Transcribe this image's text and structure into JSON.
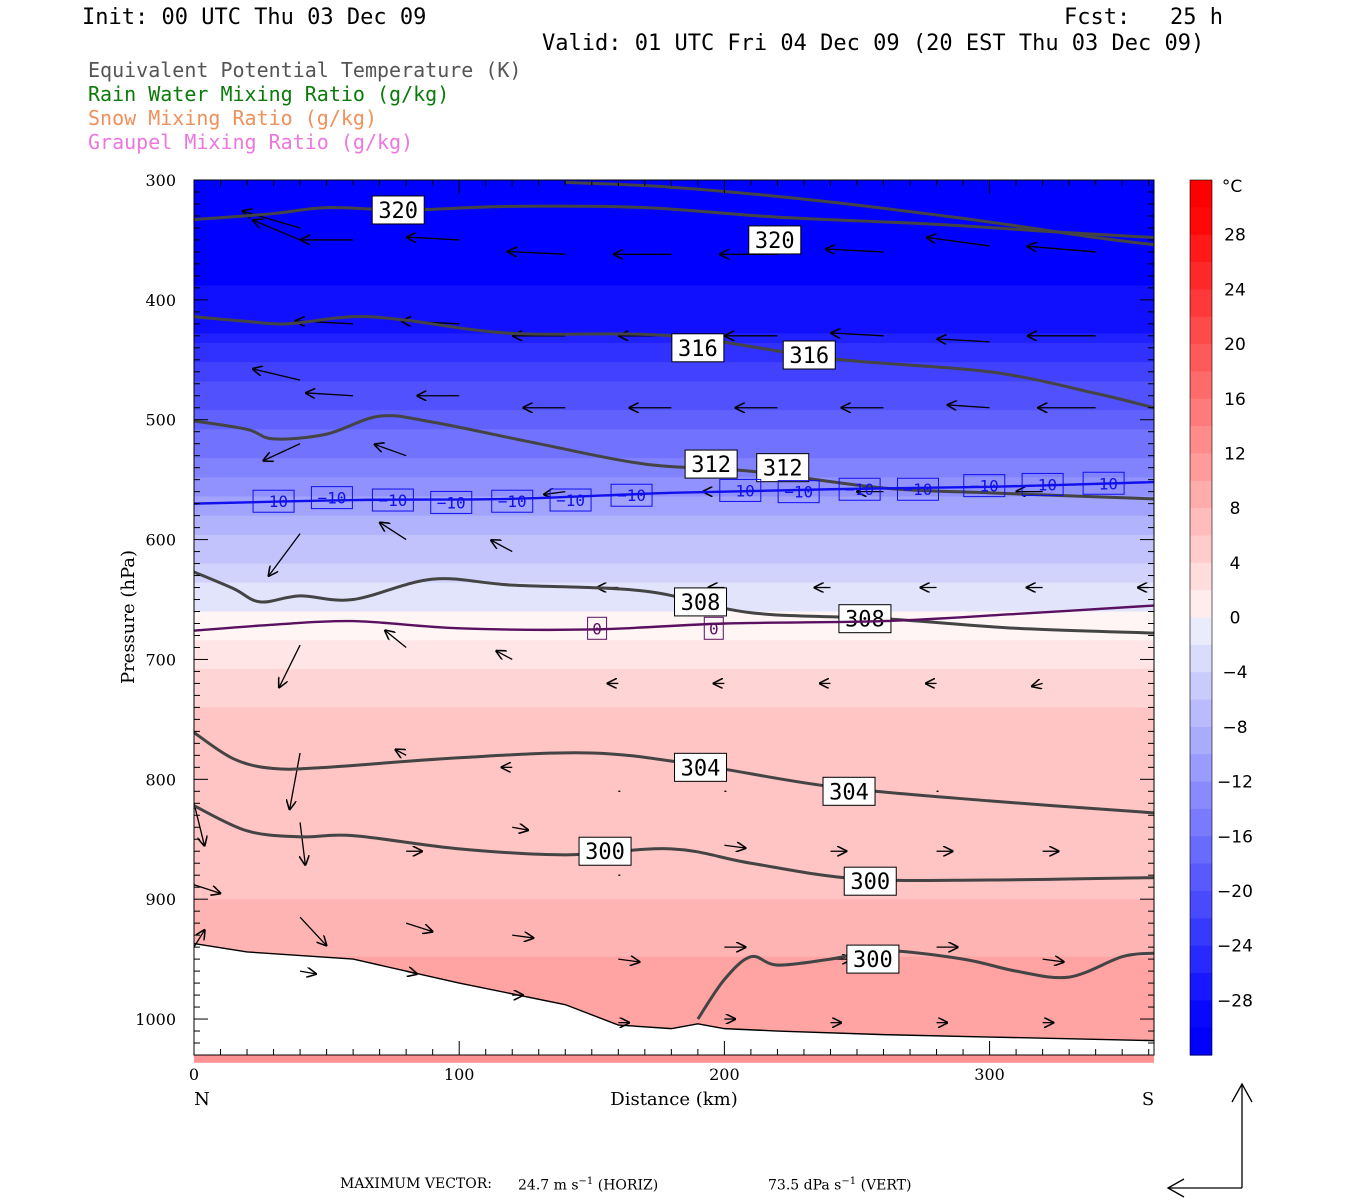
{
  "header": {
    "init": "Init: 00 UTC Thu 03 Dec 09",
    "fcst": "Fcst:   25 h",
    "valid": "Valid: 01 UTC Fri 04 Dec 09 (20 EST Thu 03 Dec 09)"
  },
  "legend": [
    {
      "label": "Equivalent Potential Temperature (K)",
      "color": "#555555"
    },
    {
      "label": "Rain Water Mixing Ratio (g/kg)",
      "color": "#0a7a0a"
    },
    {
      "label": "Snow Mixing Ratio (g/kg)",
      "color": "#f0905a"
    },
    {
      "label": "Graupel Mixing Ratio (g/kg)",
      "color": "#ee77dd"
    }
  ],
  "chart_data": {
    "type": "cross-section",
    "xlabel": "Distance (km)",
    "ylabel": "Pressure (hPa)",
    "x_range": [
      0,
      362
    ],
    "y_range": [
      300,
      1030
    ],
    "y_log_scale": false,
    "x_ticks": [
      0,
      100,
      200,
      300
    ],
    "y_ticks": [
      300,
      400,
      500,
      600,
      700,
      800,
      900,
      1000
    ],
    "end_labels": {
      "left": "N",
      "right": "S"
    },
    "colorbar": {
      "unit": "°C",
      "labels": [
        28,
        24,
        20,
        16,
        12,
        8,
        4,
        0,
        -4,
        -8,
        -12,
        -16,
        -20,
        -24,
        -28
      ],
      "label_texts": [
        "28",
        "24",
        "20",
        "16",
        "12",
        "8",
        "4",
        "0",
        "−4",
        "−8",
        "−12",
        "−16",
        "−20",
        "−24",
        "−28"
      ],
      "min": -32,
      "max": 32,
      "step": 2
    },
    "temperature_bands": [
      {
        "p": 300,
        "t": -32
      },
      {
        "p": 420,
        "t": -28
      },
      {
        "p": 460,
        "t": -22
      },
      {
        "p": 520,
        "t": -16
      },
      {
        "p": 570,
        "t": -10
      },
      {
        "p": 620,
        "t": -5
      },
      {
        "p": 670,
        "t": 0
      },
      {
        "p": 720,
        "t": 4
      },
      {
        "p": 790,
        "t": 7
      },
      {
        "p": 880,
        "t": 6
      },
      {
        "p": 950,
        "t": 9
      },
      {
        "p": 1030,
        "t": 11
      }
    ],
    "theta_e_contours": [
      {
        "label": "320",
        "points": [
          [
            0,
            333
          ],
          [
            30,
            328
          ],
          [
            50,
            323
          ],
          [
            80,
            325
          ],
          [
            120,
            322
          ],
          [
            170,
            323
          ],
          [
            220,
            331
          ],
          [
            280,
            337
          ],
          [
            330,
            344
          ],
          [
            362,
            348
          ]
        ],
        "label_pos": [
          [
            77,
            325
          ]
        ]
      },
      {
        "label": "320",
        "points": [
          [
            140,
            302
          ],
          [
            180,
            306
          ],
          [
            230,
            316
          ],
          [
            290,
            332
          ],
          [
            340,
            348
          ],
          [
            362,
            354
          ]
        ],
        "label_pos": [
          [
            219,
            350
          ]
        ]
      },
      {
        "label": "316",
        "points": [
          [
            0,
            414
          ],
          [
            20,
            418
          ],
          [
            35,
            420
          ],
          [
            60,
            414
          ],
          [
            80,
            417
          ],
          [
            120,
            428
          ],
          [
            180,
            430
          ],
          [
            240,
            449
          ],
          [
            300,
            460
          ],
          [
            340,
            478
          ],
          [
            362,
            490
          ]
        ],
        "label_pos": [
          [
            190,
            440
          ],
          [
            232,
            446
          ]
        ]
      },
      {
        "label": "312",
        "points": [
          [
            0,
            501
          ],
          [
            20,
            508
          ],
          [
            30,
            516
          ],
          [
            50,
            512
          ],
          [
            70,
            497
          ],
          [
            90,
            502
          ],
          [
            130,
            520
          ],
          [
            170,
            537
          ],
          [
            210,
            543
          ],
          [
            260,
            557
          ],
          [
            300,
            561
          ],
          [
            362,
            566
          ]
        ],
        "label_pos": [
          [
            195,
            537
          ],
          [
            222,
            540
          ]
        ]
      },
      {
        "label": "308",
        "points": [
          [
            0,
            627
          ],
          [
            15,
            641
          ],
          [
            25,
            652
          ],
          [
            40,
            647
          ],
          [
            60,
            650
          ],
          [
            90,
            633
          ],
          [
            120,
            638
          ],
          [
            170,
            643
          ],
          [
            210,
            661
          ],
          [
            260,
            666
          ],
          [
            310,
            674
          ],
          [
            362,
            678
          ]
        ],
        "label_pos": [
          [
            191,
            652
          ],
          [
            253,
            666
          ]
        ]
      },
      {
        "label": "304",
        "points": [
          [
            0,
            761
          ],
          [
            15,
            783
          ],
          [
            30,
            791
          ],
          [
            50,
            790
          ],
          [
            100,
            782
          ],
          [
            150,
            778
          ],
          [
            190,
            788
          ],
          [
            240,
            806
          ],
          [
            300,
            818
          ],
          [
            362,
            828
          ]
        ],
        "label_pos": [
          [
            191,
            790
          ],
          [
            247,
            810
          ]
        ]
      },
      {
        "label": "300",
        "points": [
          [
            0,
            822
          ],
          [
            20,
            843
          ],
          [
            40,
            848
          ],
          [
            60,
            847
          ],
          [
            100,
            858
          ],
          [
            140,
            863
          ],
          [
            180,
            858
          ],
          [
            210,
            870
          ],
          [
            250,
            883
          ],
          [
            300,
            884
          ],
          [
            362,
            882
          ]
        ],
        "label_pos": [
          [
            155,
            860
          ],
          [
            255,
            885
          ]
        ]
      },
      {
        "label": "300",
        "points": [
          [
            190,
            1000
          ],
          [
            200,
            967
          ],
          [
            210,
            948
          ],
          [
            220,
            955
          ],
          [
            240,
            950
          ],
          [
            260,
            943
          ],
          [
            290,
            950
          ],
          [
            310,
            960
          ],
          [
            330,
            965
          ],
          [
            350,
            948
          ],
          [
            362,
            945
          ]
        ],
        "label_pos": [
          [
            256,
            950
          ]
        ]
      }
    ],
    "isotherms": [
      {
        "label": "−10",
        "color": "#1010ee",
        "points": [
          [
            0,
            570
          ],
          [
            60,
            567
          ],
          [
            120,
            566
          ],
          [
            180,
            561
          ],
          [
            240,
            558
          ],
          [
            300,
            556
          ],
          [
            362,
            552
          ]
        ],
        "label_pos": [
          [
            30,
            568
          ],
          [
            52,
            565
          ],
          [
            75,
            567
          ],
          [
            97,
            569
          ],
          [
            120,
            568
          ],
          [
            142,
            567
          ],
          [
            165,
            563
          ],
          [
            206,
            559
          ],
          [
            228,
            560
          ],
          [
            251,
            558
          ],
          [
            273,
            558
          ],
          [
            298,
            555
          ],
          [
            320,
            554
          ],
          [
            343,
            553
          ]
        ]
      },
      {
        "label": "0",
        "color": "#5a1060",
        "points": [
          [
            0,
            676
          ],
          [
            30,
            671
          ],
          [
            60,
            668
          ],
          [
            100,
            674
          ],
          [
            150,
            675
          ],
          [
            200,
            670
          ],
          [
            260,
            668
          ],
          [
            310,
            662
          ],
          [
            362,
            655
          ]
        ],
        "label_pos": [
          [
            152,
            674
          ],
          [
            196,
            674
          ]
        ]
      }
    ],
    "terrain": [
      [
        0,
        937
      ],
      [
        20,
        944
      ],
      [
        60,
        950
      ],
      [
        100,
        970
      ],
      [
        140,
        988
      ],
      [
        160,
        1005
      ],
      [
        180,
        1008
      ],
      [
        190,
        1004
      ],
      [
        200,
        1008
      ],
      [
        220,
        1010
      ],
      [
        260,
        1013
      ],
      [
        300,
        1015
      ],
      [
        362,
        1018
      ]
    ],
    "vector_scale": {
      "max_vector_label": "MAXIMUM VECTOR:",
      "horizontal": "24.7 m s",
      "horizontal_exp": "−1",
      "horizontal_tag": "(HORIZ)",
      "vertical": "73.5 dPa s",
      "vertical_exp": "−1",
      "vertical_tag": "(VERT)"
    }
  }
}
